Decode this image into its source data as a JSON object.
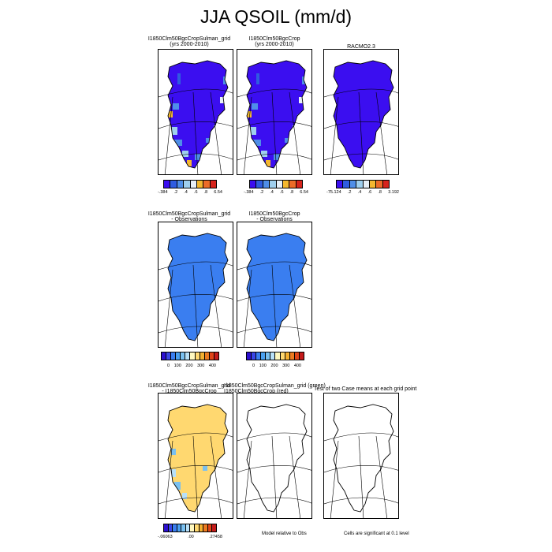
{
  "page_title": "JJA QSOIL (mm/d)",
  "panels": [
    {
      "id": "p1",
      "title": [
        "I1850Clm50BgcCropSulman_grid",
        "(yrs 2000-2010)"
      ],
      "fill": "case1"
    },
    {
      "id": "p2",
      "title": [
        "I1850Clm50BgcCrop",
        "(yrs 2000-2010)"
      ],
      "fill": "case1"
    },
    {
      "id": "p3",
      "title": [
        "RACMO2.3"
      ],
      "fill": "obs"
    },
    {
      "id": "p4",
      "title": [
        "I1850Clm50BgcCropSulman_grid",
        "- Observations"
      ],
      "fill": "diff"
    },
    {
      "id": "p5",
      "title": [
        "I1850Clm50BgcCrop",
        "- Observations"
      ],
      "fill": "diff"
    },
    {
      "id": "p6",
      "title": [
        "I1850Clm50BgcCropSulman_grid",
        "- I1850Clm50BgcCrop"
      ],
      "fill": "casediff"
    },
    {
      "id": "p7",
      "title": [
        "I1850Clm50BgcCropSulman_grid (green)",
        "I1850Clm50BgcCrop (red)"
      ],
      "fill": "none"
    },
    {
      "id": "p8",
      "title": [
        "Test of two Case means at each grid point"
      ],
      "fill": "none"
    }
  ],
  "colorbars": {
    "row1_left": {
      "labels": [
        "-.384",
        ".2",
        ".4",
        ".6",
        ".8",
        "6.54"
      ]
    },
    "row1_mid": {
      "labels": [
        "-.384",
        ".2",
        ".4",
        ".6",
        ".8",
        "6.54"
      ]
    },
    "row1_right": {
      "labels": [
        "-75.124",
        ".2",
        ".4",
        ".6",
        ".8",
        "3.192"
      ]
    },
    "row2_left": {
      "labels": [
        "0",
        "100",
        "200",
        "300",
        "400"
      ]
    },
    "row2_mid": {
      "labels": [
        "0",
        "100",
        "200",
        "300",
        "400"
      ]
    },
    "row3_left": {
      "labels": [
        "-.06063",
        ".00",
        ".27458"
      ]
    }
  },
  "notes": {
    "model_relative": "Model relative to Obs",
    "significance": "Cells are significant at 0.1 level"
  },
  "chart_data": {
    "type": "heatmap",
    "title": "JJA QSOIL (mm/d)",
    "variable": "QSOIL",
    "season": "JJA",
    "units": "mm/d",
    "region": "Greenland",
    "palette_8": [
      "#3b0ef0",
      "#2f5ce0",
      "#4f8ee8",
      "#9fcfee",
      "#e8f0f8",
      "#f4b830",
      "#ec6c28",
      "#d6241c"
    ],
    "palette_diff": [
      "#2d0fd0",
      "#3a46e6",
      "#3a7ef0",
      "#4aa0f0",
      "#7ac0f0",
      "#b8e0f8",
      "#fff8c0",
      "#ffd870",
      "#f4b030",
      "#ec7a20",
      "#e04418",
      "#c41a1a"
    ],
    "colorbar_levels_case": [
      "-.384",
      ".2",
      ".4",
      ".6",
      ".8",
      "6.54"
    ],
    "colorbar_levels_obs": [
      "-75.124",
      ".2",
      ".4",
      ".6",
      ".8",
      "3.192"
    ],
    "colorbar_levels_diff": [
      "0",
      "100",
      "200",
      "300",
      "400"
    ],
    "colorbar_levels_casediff": [
      "-.06063",
      ".00",
      ".27458"
    ]
  }
}
